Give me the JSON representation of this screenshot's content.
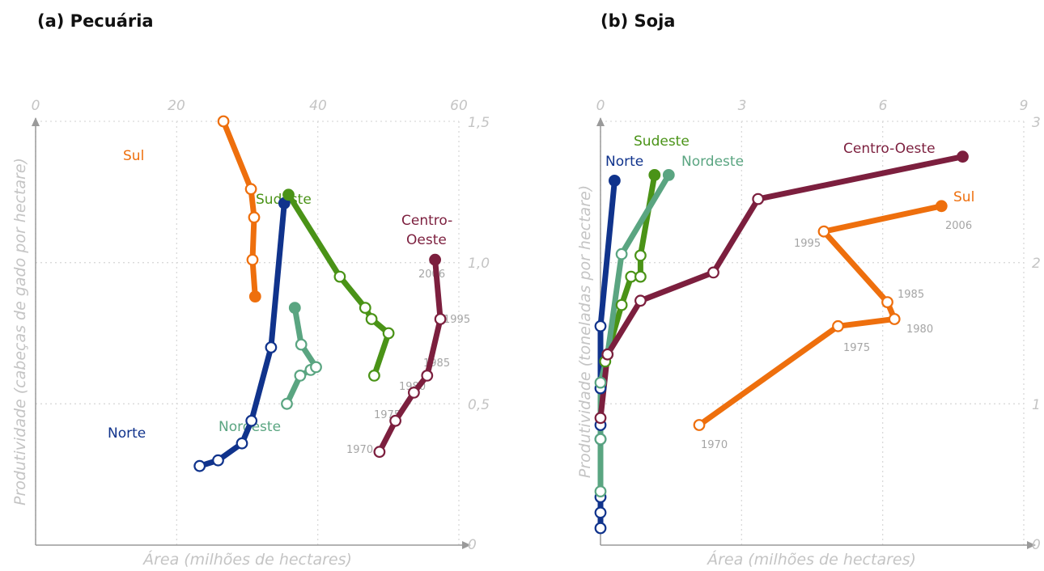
{
  "panels": [
    {
      "label": "(a) Pecuária"
    },
    {
      "label": "(b) Soja"
    }
  ],
  "chart_data": [
    {
      "type": "line",
      "title": "(a) Pecuária",
      "xlabel": "Área (milhões de hectares)",
      "ylabel": "Produtividade (cabeças de gado por hectare)",
      "xlim": [
        -20,
        60
      ],
      "ylim": [
        0,
        1.5
      ],
      "xticks": [
        "0",
        "20",
        "40",
        "60"
      ],
      "yticks": [
        "0",
        "0,5",
        "1,0",
        "1,5"
      ],
      "x_axis_position": "top",
      "y_axis_position": "right",
      "grid": true,
      "series": [
        {
          "name": "Sul",
          "color": "#ee6f0d",
          "points": [
            [
              15.5,
              1.5
            ],
            [
              20.7,
              1.26
            ],
            [
              21.3,
              1.16
            ],
            [
              21.0,
              1.01
            ],
            [
              21.5,
              0.88
            ]
          ]
        },
        {
          "name": "Norte",
          "color": "#10338c",
          "points": [
            [
              11.0,
              0.28
            ],
            [
              14.5,
              0.3
            ],
            [
              19.0,
              0.36
            ],
            [
              20.8,
              0.44
            ],
            [
              24.5,
              0.7
            ],
            [
              27.0,
              1.21
            ]
          ]
        },
        {
          "name": "Sudeste",
          "color": "#4a9317",
          "points": [
            [
              44.0,
              0.6
            ],
            [
              46.7,
              0.75
            ],
            [
              43.5,
              0.8
            ],
            [
              42.3,
              0.84
            ],
            [
              37.5,
              0.95
            ],
            [
              27.8,
              1.24
            ]
          ]
        },
        {
          "name": "Nordeste",
          "color": "#5aa581",
          "points": [
            [
              27.5,
              0.5
            ],
            [
              30.0,
              0.6
            ],
            [
              32.0,
              0.62
            ],
            [
              33.0,
              0.63
            ],
            [
              30.2,
              0.71
            ],
            [
              29.0,
              0.84
            ]
          ]
        },
        {
          "name": "Centro-Oeste",
          "color": "#7c1f3e",
          "points": [
            [
              45.0,
              0.33
            ],
            [
              48.0,
              0.44
            ],
            [
              51.5,
              0.54
            ],
            [
              54.0,
              0.6
            ],
            [
              56.5,
              0.8
            ],
            [
              55.5,
              1.01
            ]
          ]
        }
      ],
      "labels": [
        {
          "text": "Sul",
          "series": "Sul"
        },
        {
          "text": "Norte",
          "series": "Norte"
        },
        {
          "text": "Sudeste",
          "series": "Sudeste"
        },
        {
          "text": "Nordeste",
          "series": "Nordeste"
        },
        {
          "text": "Centro-",
          "series": "Centro-Oeste"
        },
        {
          "text": "Oeste",
          "series": "Centro-Oeste"
        }
      ],
      "year_labels": [
        "2006",
        "1995",
        "1985",
        "1980",
        "1975",
        "1970"
      ]
    },
    {
      "type": "line",
      "title": "(b) Soja",
      "xlabel": "Área (milhões de hectares)",
      "ylabel": "Produtividade (toneladas por hectare)",
      "xlim": [
        0,
        9
      ],
      "ylim": [
        0,
        3
      ],
      "xticks": [
        "0",
        "3",
        "6",
        "9"
      ],
      "yticks": [
        "0",
        "1",
        "2",
        "3"
      ],
      "x_axis_position": "top",
      "y_axis_position": "right",
      "grid": true,
      "series": [
        {
          "name": "Norte",
          "color": "#10338c",
          "points": [
            [
              0.0,
              0.12
            ],
            [
              0.0,
              0.23
            ],
            [
              0.0,
              0.34
            ],
            [
              0.0,
              0.75
            ],
            [
              0.0,
              0.85
            ],
            [
              0.0,
              1.11
            ],
            [
              0.0,
              1.55
            ],
            [
              0.3,
              2.58
            ]
          ]
        },
        {
          "name": "Sudeste",
          "color": "#4a9317",
          "points": [
            [
              0.1,
              1.3
            ],
            [
              0.45,
              1.7
            ],
            [
              0.65,
              1.9
            ],
            [
              0.85,
              1.9
            ],
            [
              0.85,
              2.05
            ],
            [
              1.15,
              2.62
            ]
          ]
        },
        {
          "name": "Nordeste",
          "color": "#5aa581",
          "points": [
            [
              0.0,
              0.38
            ],
            [
              0.0,
              0.75
            ],
            [
              0.0,
              1.15
            ],
            [
              0.15,
              1.35
            ],
            [
              0.45,
              2.06
            ],
            [
              1.45,
              2.62
            ]
          ]
        },
        {
          "name": "Centro-Oeste",
          "color": "#7c1f3e",
          "points": [
            [
              0.0,
              0.9
            ],
            [
              0.15,
              1.35
            ],
            [
              0.85,
              1.73
            ],
            [
              2.4,
              1.93
            ],
            [
              3.35,
              2.45
            ],
            [
              7.7,
              2.75
            ]
          ]
        },
        {
          "name": "Sul",
          "color": "#ee6f0d",
          "points": [
            [
              2.1,
              0.85
            ],
            [
              5.05,
              1.55
            ],
            [
              6.25,
              1.6
            ],
            [
              6.1,
              1.72
            ],
            [
              4.75,
              2.22
            ],
            [
              7.25,
              2.4
            ]
          ]
        }
      ],
      "labels": [
        {
          "text": "Norte",
          "series": "Norte"
        },
        {
          "text": "Sudeste",
          "series": "Sudeste"
        },
        {
          "text": "Nordeste",
          "series": "Nordeste"
        },
        {
          "text": "Centro-Oeste",
          "series": "Centro-Oeste"
        },
        {
          "text": "Sul",
          "series": "Sul"
        }
      ],
      "year_labels": [
        "2006",
        "1995",
        "1985",
        "1980",
        "1975",
        "1970"
      ]
    }
  ]
}
